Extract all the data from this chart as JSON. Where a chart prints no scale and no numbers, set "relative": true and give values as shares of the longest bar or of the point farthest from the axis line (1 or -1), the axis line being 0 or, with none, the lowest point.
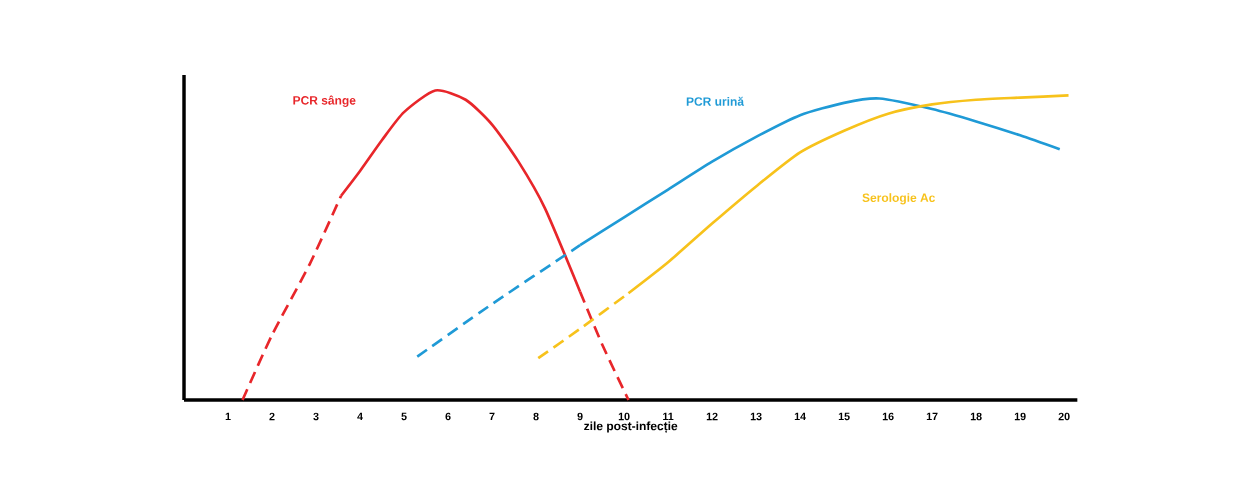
{
  "chart_data": {
    "type": "line",
    "relative": true,
    "xlabel": "zile post-infecție",
    "xlim": [
      0,
      20.3
    ],
    "xticks": [
      1,
      2,
      3,
      4,
      5,
      6,
      7,
      8,
      9,
      10,
      11,
      12,
      13,
      14,
      15,
      16,
      17,
      18,
      19,
      20
    ],
    "legend": false,
    "series": [
      {
        "color": "#e8262a",
        "line_style": "dashed",
        "x": [
          1.33,
          2.0,
          2.86,
          3.57
        ],
        "values": [
          0,
          0.21,
          0.44,
          0.66
        ]
      },
      {
        "name": "PCR sânge",
        "color": "#e8262a",
        "line_style": "solid",
        "x": [
          3.57,
          4.0,
          4.5,
          5.0,
          5.71,
          6.4,
          7.0,
          7.6,
          8.2,
          9.0
        ],
        "values": [
          0.66,
          0.74,
          0.84,
          0.93,
          1.0,
          0.97,
          0.89,
          0.77,
          0.62,
          0.35
        ]
      },
      {
        "color": "#e8262a",
        "line_style": "dashed",
        "x": [
          9.0,
          9.5,
          10.1
        ],
        "values": [
          0.35,
          0.18,
          0
        ]
      },
      {
        "color": "#1f9ad6",
        "line_style": "dashed",
        "x": [
          5.3,
          7.0,
          9.0
        ],
        "values": [
          0.14,
          0.31,
          0.5
        ]
      },
      {
        "name": "PCR urină",
        "color": "#1f9ad6",
        "line_style": "solid",
        "x": [
          9.0,
          10.0,
          11.0,
          12.0,
          13.0,
          14.0,
          15.0,
          15.8,
          17.0,
          18.0,
          19.0,
          19.9
        ],
        "values": [
          0.5,
          0.59,
          0.68,
          0.77,
          0.85,
          0.92,
          0.96,
          0.974,
          0.94,
          0.9,
          0.855,
          0.81
        ]
      },
      {
        "color": "#f7c21b",
        "line_style": "dashed",
        "x": [
          8.05,
          9.0,
          10.1
        ],
        "values": [
          0.135,
          0.23,
          0.345
        ]
      },
      {
        "name": "Serologie Ac",
        "color": "#f7c21b",
        "line_style": "solid",
        "x": [
          10.1,
          11.0,
          12.0,
          13.0,
          14.0,
          15.0,
          16.0,
          17.0,
          18.0,
          19.0,
          20.1
        ],
        "values": [
          0.345,
          0.445,
          0.57,
          0.69,
          0.8,
          0.87,
          0.925,
          0.955,
          0.97,
          0.977,
          0.984
        ]
      }
    ]
  }
}
